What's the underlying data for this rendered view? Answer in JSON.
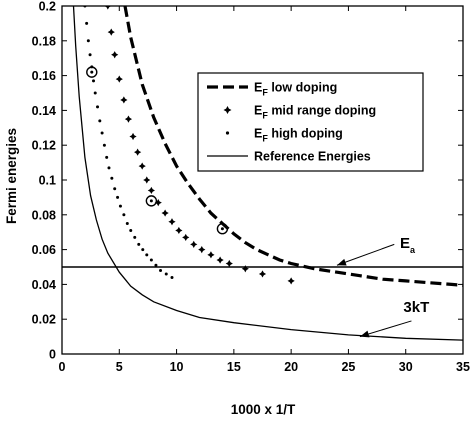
{
  "chart_data": {
    "type": "line",
    "xlabel": "1000 x 1/T",
    "ylabel": "Fermi energies",
    "xlim": [
      0,
      35
    ],
    "ylim": [
      0,
      0.2
    ],
    "xticks": [
      0,
      5,
      10,
      15,
      20,
      25,
      30,
      35
    ],
    "yticks": [
      0,
      0.02,
      0.04,
      0.06,
      0.08,
      0.1,
      0.12,
      0.14,
      0.16,
      0.18,
      0.2
    ],
    "xtick_labels": [
      "0",
      "5",
      "10",
      "15",
      "20",
      "25",
      "30",
      "35"
    ],
    "ytick_labels": [
      "0",
      "0.02",
      "0.04",
      "0.06",
      "0.08",
      "0.1",
      "0.12",
      "0.14",
      "0.16",
      "0.18",
      "0.2"
    ],
    "grid": false,
    "legend_position": "top-right",
    "series": [
      {
        "name": "E_F low doping",
        "legend_main": "E",
        "legend_sub": "F",
        "legend_rest": " low doping",
        "style": "dashed",
        "points": [
          [
            5.5,
            0.2
          ],
          [
            6,
            0.182
          ],
          [
            7,
            0.155
          ],
          [
            8,
            0.136
          ],
          [
            9,
            0.121
          ],
          [
            10,
            0.108
          ],
          [
            11,
            0.098
          ],
          [
            12,
            0.089
          ],
          [
            13,
            0.081
          ],
          [
            14,
            0.075
          ],
          [
            15,
            0.069
          ],
          [
            16,
            0.064
          ],
          [
            17,
            0.06
          ],
          [
            18,
            0.057
          ],
          [
            19,
            0.054
          ],
          [
            20,
            0.052
          ],
          [
            22,
            0.049
          ],
          [
            24,
            0.047
          ],
          [
            26,
            0.045
          ],
          [
            28,
            0.043
          ],
          [
            30,
            0.042
          ],
          [
            32,
            0.041
          ],
          [
            34,
            0.04
          ],
          [
            35,
            0.0395
          ]
        ]
      },
      {
        "name": "E_F mid range doping",
        "legend_main": "E",
        "legend_sub": "F",
        "legend_rest": " mid range  doping",
        "style": "plus-markers",
        "points": [
          [
            4,
            0.2
          ],
          [
            4.3,
            0.185
          ],
          [
            4.6,
            0.172
          ],
          [
            5,
            0.158
          ],
          [
            5.4,
            0.146
          ],
          [
            5.8,
            0.135
          ],
          [
            6.2,
            0.125
          ],
          [
            6.6,
            0.116
          ],
          [
            7,
            0.108
          ],
          [
            7.4,
            0.1
          ],
          [
            7.8,
            0.094
          ],
          [
            8.4,
            0.087
          ],
          [
            9,
            0.081
          ],
          [
            9.6,
            0.076
          ],
          [
            10.2,
            0.071
          ],
          [
            10.8,
            0.067
          ],
          [
            11.5,
            0.063
          ],
          [
            12.2,
            0.06
          ],
          [
            13,
            0.057
          ],
          [
            13.8,
            0.054
          ],
          [
            14.6,
            0.052
          ],
          [
            16,
            0.049
          ],
          [
            17.5,
            0.046
          ],
          [
            20,
            0.042
          ]
        ]
      },
      {
        "name": "E_F high doping",
        "legend_main": "E",
        "legend_sub": "F",
        "legend_rest": " high doping",
        "style": "dot-markers",
        "points": [
          [
            2,
            0.2
          ],
          [
            2.15,
            0.19
          ],
          [
            2.3,
            0.18
          ],
          [
            2.45,
            0.172
          ],
          [
            2.6,
            0.165
          ],
          [
            2.75,
            0.157
          ],
          [
            2.9,
            0.15
          ],
          [
            3.1,
            0.142
          ],
          [
            3.3,
            0.134
          ],
          [
            3.5,
            0.127
          ],
          [
            3.7,
            0.12
          ],
          [
            3.9,
            0.113
          ],
          [
            4.1,
            0.107
          ],
          [
            4.35,
            0.101
          ],
          [
            4.6,
            0.095
          ],
          [
            4.85,
            0.09
          ],
          [
            5.1,
            0.085
          ],
          [
            5.4,
            0.08
          ],
          [
            5.7,
            0.075
          ],
          [
            6,
            0.071
          ],
          [
            6.35,
            0.067
          ],
          [
            6.7,
            0.063
          ],
          [
            7.05,
            0.06
          ],
          [
            7.4,
            0.057
          ],
          [
            7.8,
            0.054
          ],
          [
            8.2,
            0.051
          ],
          [
            8.6,
            0.048
          ],
          [
            9.1,
            0.046
          ],
          [
            9.6,
            0.044
          ]
        ]
      },
      {
        "name": "Reference Energies",
        "legend_main": "Reference Energies",
        "legend_sub": "",
        "legend_rest": "",
        "style": "solid",
        "points": [
          [
            1,
            0.2
          ],
          [
            1.2,
            0.177
          ],
          [
            1.5,
            0.148
          ],
          [
            2,
            0.113
          ],
          [
            2.5,
            0.091
          ],
          [
            3,
            0.077
          ],
          [
            3.5,
            0.066
          ],
          [
            4,
            0.058
          ],
          [
            5,
            0.047
          ],
          [
            6,
            0.039
          ],
          [
            7,
            0.034
          ],
          [
            8,
            0.03
          ],
          [
            10,
            0.025
          ],
          [
            12,
            0.021
          ],
          [
            15,
            0.018
          ],
          [
            20,
            0.014
          ],
          [
            25,
            0.011
          ],
          [
            30,
            0.009
          ],
          [
            35,
            0.008
          ]
        ]
      },
      {
        "name": "E_a",
        "style": "solid-flat",
        "points": [
          [
            0,
            0.05
          ],
          [
            35,
            0.05
          ]
        ]
      }
    ],
    "highlight_circles": [
      [
        2.6,
        0.162
      ],
      [
        7.8,
        0.088
      ],
      [
        14,
        0.072
      ]
    ],
    "annotations": [
      {
        "main": "E",
        "sub": "a",
        "text_x": 29.5,
        "text_y": 0.061,
        "arrow_from": [
          29,
          0.063
        ],
        "arrow_to": [
          24,
          0.051
        ]
      },
      {
        "main": "3kT",
        "sub": "",
        "text_x": 29.8,
        "text_y": 0.024,
        "arrow_from": [
          30.5,
          0.019
        ],
        "arrow_to": [
          26,
          0.01
        ]
      }
    ]
  }
}
